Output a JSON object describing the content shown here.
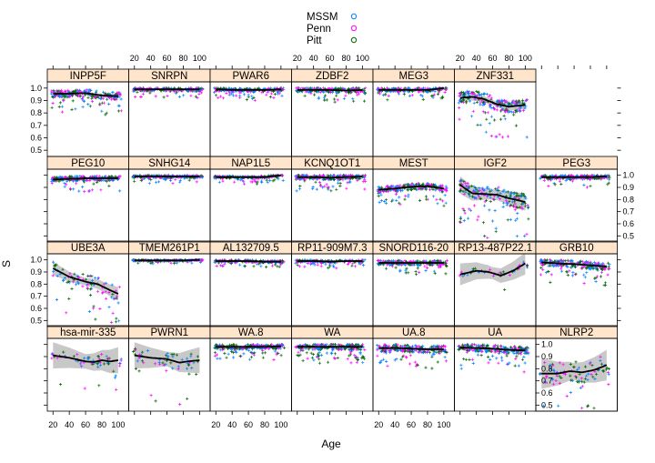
{
  "chart_data": {
    "type": "scatter",
    "xlabel": "Age",
    "ylabel": "S",
    "xlim": [
      13,
      113
    ],
    "ylim": [
      0.45,
      1.05
    ],
    "x_ticks": [
      20,
      40,
      60,
      80,
      100
    ],
    "y_ticks": [
      0.5,
      0.6,
      0.7,
      0.8,
      0.9,
      1.0
    ],
    "y_tick_labels": [
      "0.5",
      "0.6",
      "0.7",
      "0.8",
      "0.9",
      "1.0"
    ],
    "legend": {
      "placement": "top-center",
      "entries": [
        {
          "name": "MSSM",
          "color": "#0080ff"
        },
        {
          "name": "Penn",
          "color": "#ff00ff"
        },
        {
          "name": "Pitt",
          "color": "#006400"
        }
      ]
    },
    "strip_color": "#ffe5cc",
    "smooth_color": "#000000",
    "band_color": "#bebebe",
    "grid": false,
    "panels": [
      {
        "name": "hsa-mir-335",
        "smooth": [
          [
            20,
            0.91
          ],
          [
            40,
            0.89
          ],
          [
            60,
            0.86
          ],
          [
            70,
            0.855
          ],
          [
            80,
            0.87
          ],
          [
            90,
            0.86
          ],
          [
            100,
            0.87
          ]
        ],
        "band": 0.06,
        "center": 0.87,
        "spread": 0.1,
        "n": 60
      },
      {
        "name": "PWRN1",
        "smooth": [
          [
            20,
            0.91
          ],
          [
            40,
            0.89
          ],
          [
            60,
            0.88
          ],
          [
            75,
            0.85
          ],
          [
            85,
            0.86
          ],
          [
            100,
            0.87
          ]
        ],
        "band": 0.06,
        "center": 0.87,
        "spread": 0.12,
        "n": 60
      },
      {
        "name": "WA.8",
        "smooth": [
          [
            20,
            0.98
          ],
          [
            40,
            0.98
          ],
          [
            60,
            0.98
          ],
          [
            80,
            0.98
          ],
          [
            100,
            0.985
          ]
        ],
        "band": 0.01,
        "center": 0.975,
        "spread": 0.04,
        "n": 220
      },
      {
        "name": "WA",
        "smooth": [
          [
            20,
            0.98
          ],
          [
            40,
            0.98
          ],
          [
            60,
            0.98
          ],
          [
            80,
            0.98
          ],
          [
            100,
            0.98
          ]
        ],
        "band": 0.01,
        "center": 0.97,
        "spread": 0.05,
        "n": 220
      },
      {
        "name": "UA.8",
        "smooth": [
          [
            20,
            0.97
          ],
          [
            40,
            0.97
          ],
          [
            60,
            0.965
          ],
          [
            80,
            0.96
          ],
          [
            100,
            0.96
          ]
        ],
        "band": 0.01,
        "center": 0.96,
        "spread": 0.06,
        "n": 220
      },
      {
        "name": "UA",
        "smooth": [
          [
            20,
            0.975
          ],
          [
            40,
            0.97
          ],
          [
            60,
            0.965
          ],
          [
            80,
            0.955
          ],
          [
            100,
            0.95
          ]
        ],
        "band": 0.01,
        "center": 0.955,
        "spread": 0.06,
        "n": 220
      },
      {
        "name": "NLRP2",
        "smooth": [
          [
            20,
            0.76
          ],
          [
            40,
            0.76
          ],
          [
            55,
            0.78
          ],
          [
            70,
            0.77
          ],
          [
            85,
            0.79
          ],
          [
            100,
            0.83
          ]
        ],
        "band": 0.07,
        "center": 0.78,
        "spread": 0.18,
        "n": 90
      },
      {
        "name": "UBE3A",
        "smooth": [
          [
            20,
            0.93
          ],
          [
            40,
            0.86
          ],
          [
            60,
            0.82
          ],
          [
            75,
            0.8
          ],
          [
            90,
            0.75
          ],
          [
            100,
            0.72
          ]
        ],
        "band": 0.03,
        "center": 0.8,
        "spread": 0.12,
        "n": 90
      },
      {
        "name": "TMEM261P1",
        "smooth": [
          [
            20,
            0.995
          ],
          [
            40,
            0.995
          ],
          [
            60,
            0.995
          ],
          [
            80,
            0.995
          ],
          [
            100,
            1.0
          ]
        ],
        "band": 0.005,
        "center": 0.995,
        "spread": 0.01,
        "n": 180
      },
      {
        "name": "AL132709.5",
        "smooth": [
          [
            20,
            0.99
          ],
          [
            40,
            0.99
          ],
          [
            60,
            0.99
          ],
          [
            80,
            0.985
          ],
          [
            100,
            0.985
          ]
        ],
        "band": 0.005,
        "center": 0.985,
        "spread": 0.02,
        "n": 180
      },
      {
        "name": "RP11-909M7.3",
        "smooth": [
          [
            20,
            0.99
          ],
          [
            40,
            0.99
          ],
          [
            60,
            0.985
          ],
          [
            80,
            0.99
          ],
          [
            100,
            0.99
          ]
        ],
        "band": 0.005,
        "center": 0.985,
        "spread": 0.02,
        "n": 160
      },
      {
        "name": "SNORD116-20",
        "smooth": [
          [
            20,
            0.975
          ],
          [
            40,
            0.975
          ],
          [
            60,
            0.975
          ],
          [
            80,
            0.975
          ],
          [
            100,
            0.975
          ]
        ],
        "band": 0.01,
        "center": 0.96,
        "spread": 0.04,
        "n": 200
      },
      {
        "name": "RP13-487P22.1",
        "smooth": [
          [
            20,
            0.88
          ],
          [
            40,
            0.91
          ],
          [
            55,
            0.9
          ],
          [
            70,
            0.87
          ],
          [
            85,
            0.91
          ],
          [
            100,
            0.97
          ]
        ],
        "band": 0.05,
        "center": 0.9,
        "spread": 0.05,
        "n": 40
      },
      {
        "name": "GRB10",
        "smooth": [
          [
            20,
            0.98
          ],
          [
            40,
            0.97
          ],
          [
            60,
            0.965
          ],
          [
            80,
            0.955
          ],
          [
            100,
            0.945
          ]
        ],
        "band": 0.01,
        "center": 0.96,
        "spread": 0.06,
        "n": 220
      },
      {
        "name": "PEG10",
        "smooth": [
          [
            20,
            0.965
          ],
          [
            40,
            0.97
          ],
          [
            60,
            0.975
          ],
          [
            80,
            0.975
          ],
          [
            100,
            0.975
          ]
        ],
        "band": 0.01,
        "center": 0.965,
        "spread": 0.04,
        "n": 200
      },
      {
        "name": "SNHG14",
        "smooth": [
          [
            20,
            0.99
          ],
          [
            40,
            0.99
          ],
          [
            60,
            0.99
          ],
          [
            80,
            0.99
          ],
          [
            100,
            0.99
          ]
        ],
        "band": 0.005,
        "center": 0.985,
        "spread": 0.02,
        "n": 220
      },
      {
        "name": "NAP1L5",
        "smooth": [
          [
            20,
            0.985
          ],
          [
            40,
            0.985
          ],
          [
            60,
            0.985
          ],
          [
            80,
            0.985
          ],
          [
            100,
            1.0
          ]
        ],
        "band": 0.005,
        "center": 0.98,
        "spread": 0.02,
        "n": 180
      },
      {
        "name": "KCNQ1OT1",
        "smooth": [
          [
            20,
            0.985
          ],
          [
            40,
            0.985
          ],
          [
            60,
            0.98
          ],
          [
            80,
            0.985
          ],
          [
            100,
            0.99
          ]
        ],
        "band": 0.01,
        "center": 0.97,
        "spread": 0.04,
        "n": 220
      },
      {
        "name": "MEST",
        "smooth": [
          [
            20,
            0.88
          ],
          [
            40,
            0.89
          ],
          [
            60,
            0.905
          ],
          [
            80,
            0.91
          ],
          [
            100,
            0.89
          ]
        ],
        "band": 0.01,
        "center": 0.89,
        "spread": 0.05,
        "n": 220
      },
      {
        "name": "IGF2",
        "smooth": [
          [
            20,
            0.92
          ],
          [
            35,
            0.85
          ],
          [
            50,
            0.845
          ],
          [
            65,
            0.84
          ],
          [
            80,
            0.81
          ],
          [
            100,
            0.78
          ]
        ],
        "band": 0.04,
        "center": 0.8,
        "spread": 0.13,
        "n": 180
      },
      {
        "name": "PEG3",
        "smooth": [
          [
            20,
            0.985
          ],
          [
            40,
            0.985
          ],
          [
            60,
            0.985
          ],
          [
            80,
            0.985
          ],
          [
            100,
            0.99
          ]
        ],
        "band": 0.005,
        "center": 0.98,
        "spread": 0.03,
        "n": 220
      },
      {
        "name": "INPP5F",
        "smooth": [
          [
            20,
            0.955
          ],
          [
            40,
            0.955
          ],
          [
            60,
            0.96
          ],
          [
            80,
            0.94
          ],
          [
            100,
            0.935
          ]
        ],
        "band": 0.01,
        "center": 0.94,
        "spread": 0.06,
        "n": 220
      },
      {
        "name": "SNRPN",
        "smooth": [
          [
            20,
            0.99
          ],
          [
            40,
            0.99
          ],
          [
            60,
            0.99
          ],
          [
            80,
            0.99
          ],
          [
            100,
            0.99
          ]
        ],
        "band": 0.005,
        "center": 0.985,
        "spread": 0.03,
        "n": 200
      },
      {
        "name": "PWAR6",
        "smooth": [
          [
            20,
            0.99
          ],
          [
            40,
            0.985
          ],
          [
            60,
            0.985
          ],
          [
            80,
            0.985
          ],
          [
            100,
            0.99
          ]
        ],
        "band": 0.005,
        "center": 0.985,
        "spread": 0.03,
        "n": 200
      },
      {
        "name": "ZDBF2",
        "smooth": [
          [
            20,
            0.985
          ],
          [
            40,
            0.985
          ],
          [
            60,
            0.985
          ],
          [
            80,
            0.98
          ],
          [
            100,
            0.985
          ]
        ],
        "band": 0.005,
        "center": 0.975,
        "spread": 0.04,
        "n": 200
      },
      {
        "name": "MEG3",
        "smooth": [
          [
            20,
            0.985
          ],
          [
            40,
            0.985
          ],
          [
            60,
            0.985
          ],
          [
            80,
            0.985
          ],
          [
            100,
            1.0
          ]
        ],
        "band": 0.005,
        "center": 0.98,
        "spread": 0.03,
        "n": 200
      },
      {
        "name": "ZNF331",
        "smooth": [
          [
            20,
            0.92
          ],
          [
            35,
            0.93
          ],
          [
            50,
            0.91
          ],
          [
            65,
            0.87
          ],
          [
            80,
            0.85
          ],
          [
            100,
            0.865
          ]
        ],
        "band": 0.02,
        "center": 0.86,
        "spread": 0.1,
        "n": 220
      }
    ]
  }
}
